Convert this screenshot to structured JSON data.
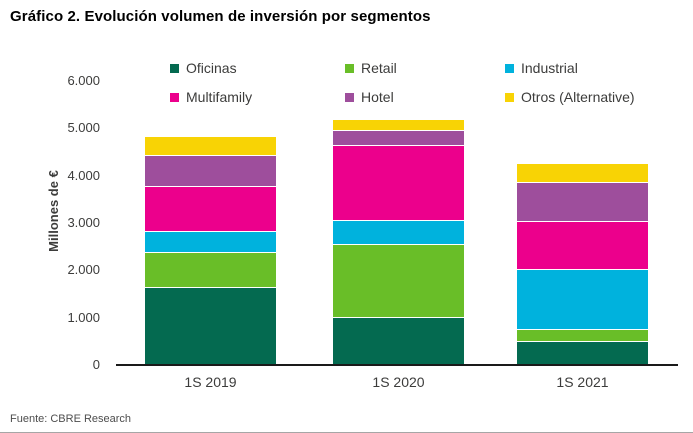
{
  "title": "Gráfico 2. Evolución volumen de inversión por segmentos",
  "source": "Fuente: CBRE Research",
  "chart_data": {
    "type": "bar",
    "stacked": true,
    "title": "Gráfico 2. Evolución volumen de inversión por segmentos",
    "categories": [
      "1S 2019",
      "1S 2020",
      "1S 2021"
    ],
    "series": [
      {
        "name": "Oficinas",
        "color": "#046A50",
        "values": [
          1620,
          1000,
          490
        ]
      },
      {
        "name": "Retail",
        "color": "#69BE28",
        "values": [
          750,
          1535,
          250
        ]
      },
      {
        "name": "Industrial",
        "color": "#00B2DD",
        "values": [
          445,
          510,
          1265
        ]
      },
      {
        "name": "Multifamily",
        "color": "#EC008C",
        "values": [
          950,
          1585,
          1010
        ]
      },
      {
        "name": "Hotel",
        "color": "#9E4E9C",
        "values": [
          650,
          325,
          825
        ]
      },
      {
        "name": "Otros (Alternative)",
        "color": "#F8D305",
        "values": [
          410,
          225,
          400
        ]
      }
    ],
    "totals": [
      4825,
      5180,
      4240
    ],
    "xlabel": "",
    "ylabel": "Millones de €",
    "ylim": [
      0,
      6000
    ],
    "y_ticks": [
      0,
      1000,
      2000,
      3000,
      4000,
      5000,
      6000
    ],
    "y_tick_labels": [
      "0",
      "1.000",
      "2.000",
      "3.000",
      "4.000",
      "5.000",
      "6.000"
    ],
    "grid": false,
    "legend_position": "top",
    "legend_rows": [
      [
        "Oficinas",
        "Retail",
        "Industrial"
      ],
      [
        "Multifamily",
        "Hotel",
        "Otros (Alternative)"
      ]
    ]
  }
}
